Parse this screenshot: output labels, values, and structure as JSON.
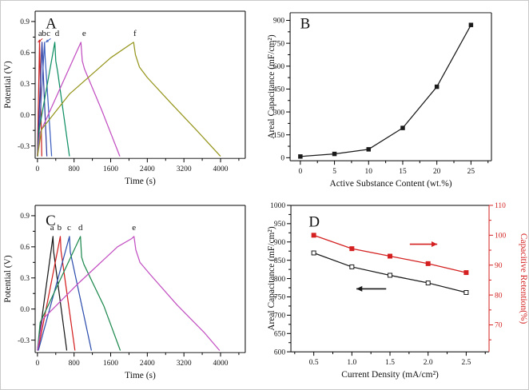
{
  "figure": {
    "background": "#ffffff",
    "border_color": "#c9c9c9",
    "panels": [
      "A",
      "B",
      "C",
      "D"
    ]
  },
  "chart_data": [
    {
      "id": "A",
      "type": "line",
      "panel_letter": "A",
      "xlabel": "Time (s)",
      "ylabel": "Potential (V)",
      "xlim": [
        -50,
        4540
      ],
      "ylim": [
        -0.42,
        1.0
      ],
      "xticks": {
        "v": [
          0,
          800,
          1600,
          2400,
          3200,
          4000
        ],
        "labels": [
          "0",
          "800",
          "1600",
          "2400",
          "3200",
          "4000"
        ]
      },
      "xminor": [
        400,
        1200,
        2000,
        2800,
        3600,
        4400
      ],
      "yticks": {
        "v": [
          0.9,
          0.6,
          0.3,
          0.0,
          -0.3
        ],
        "labels": [
          "0.9",
          "0.6",
          "0.3",
          "0.0",
          "-0.3"
        ]
      },
      "yminor": [
        0.75,
        0.45,
        0.15,
        -0.15
      ],
      "margins": {
        "l": 43,
        "r": 24,
        "t": 13,
        "b": 46
      },
      "series": [
        {
          "name": "a",
          "color": "#cc2222",
          "points": [
            [
              0,
              -0.4
            ],
            [
              45,
              0.7
            ],
            [
              52,
              0.58
            ],
            [
              95,
              -0.4
            ]
          ]
        },
        {
          "name": "b",
          "color": "#2f3b9e",
          "points": [
            [
              0,
              -0.4
            ],
            [
              100,
              0.7
            ],
            [
              110,
              0.57
            ],
            [
              205,
              -0.4
            ]
          ]
        },
        {
          "name": "c",
          "color": "#3c5fc0",
          "points": [
            [
              5,
              -0.4
            ],
            [
              155,
              0.7
            ],
            [
              167,
              0.56
            ],
            [
              310,
              -0.4
            ]
          ]
        },
        {
          "name": "d",
          "color": "#108f63",
          "points": [
            [
              0,
              -0.4
            ],
            [
              35,
              -0.15
            ],
            [
              380,
              0.7
            ],
            [
              400,
              0.52
            ],
            [
              440,
              0.42
            ],
            [
              700,
              -0.4
            ]
          ]
        },
        {
          "name": "e",
          "color": "#c24fc2",
          "points": [
            [
              0,
              -0.4
            ],
            [
              50,
              -0.18
            ],
            [
              950,
              0.7
            ],
            [
              980,
              0.52
            ],
            [
              1030,
              0.44
            ],
            [
              1400,
              0.05
            ],
            [
              1800,
              -0.4
            ]
          ]
        },
        {
          "name": "f",
          "color": "#95951d",
          "points": [
            [
              0,
              -0.4
            ],
            [
              90,
              -0.14
            ],
            [
              700,
              0.2
            ],
            [
              1600,
              0.55
            ],
            [
              2030,
              0.68
            ],
            [
              2100,
              0.7
            ],
            [
              2140,
              0.58
            ],
            [
              2230,
              0.46
            ],
            [
              2400,
              0.36
            ],
            [
              2900,
              0.12
            ],
            [
              3500,
              -0.16
            ],
            [
              4000,
              -0.4
            ]
          ]
        }
      ],
      "annotations": [
        {
          "type": "letter",
          "fx": 0.05,
          "fy": 0.92,
          "text": "A",
          "size": 19
        },
        {
          "type": "text",
          "x": 60,
          "y": 0.76,
          "text": "a",
          "size": 11
        },
        {
          "type": "text",
          "x": 145,
          "y": 0.76,
          "text": "b",
          "size": 11
        },
        {
          "type": "text",
          "x": 240,
          "y": 0.76,
          "text": "c",
          "size": 11
        },
        {
          "type": "text",
          "x": 430,
          "y": 0.76,
          "text": "d",
          "size": 11
        },
        {
          "type": "text",
          "x": 1020,
          "y": 0.76,
          "text": "e",
          "size": 11
        },
        {
          "type": "text",
          "x": 2130,
          "y": 0.76,
          "text": "f",
          "size": 11
        },
        {
          "type": "arrow",
          "x1": 110,
          "y1": 0.735,
          "x2": 10,
          "y2": 0.7,
          "color": "#cc2222",
          "w": 1,
          "head": 4
        },
        {
          "type": "arrow",
          "x1": 290,
          "y1": 0.735,
          "x2": 180,
          "y2": 0.7,
          "color": "#3c5fc0",
          "w": 1,
          "head": 4
        }
      ]
    },
    {
      "id": "B",
      "type": "line",
      "panel_letter": "B",
      "xlabel": "Active Substance Content (wt.%)",
      "ylabel": "Areal Capacitance (mF/cm²)",
      "xlim": [
        -1.5,
        28
      ],
      "ylim": [
        -20,
        950
      ],
      "xticks": {
        "v": [
          0,
          5,
          10,
          15,
          20,
          25
        ],
        "labels": [
          "0",
          "5",
          "10",
          "15",
          "20",
          "25"
        ]
      },
      "xminor": [
        2.5,
        7.5,
        12.5,
        17.5,
        22.5,
        27.5
      ],
      "yticks": {
        "v": [
          0,
          150,
          300,
          450,
          600,
          750,
          900
        ],
        "labels": [
          "0",
          "150",
          "300",
          "450",
          "600",
          "750",
          "900"
        ]
      },
      "yminor": [
        75,
        225,
        375,
        525,
        675,
        825
      ],
      "margins": {
        "l": 32,
        "r": 46,
        "t": 15,
        "b": 43
      },
      "series": [
        {
          "name": "areal-capacitance",
          "color": "#1a1a1a",
          "marker": "filled",
          "ms": 4.5,
          "points": [
            [
              0,
              8
            ],
            [
              5,
              25
            ],
            [
              10,
              55
            ],
            [
              15,
              195
            ],
            [
              20,
              465
            ],
            [
              25,
              870
            ]
          ]
        }
      ],
      "annotations": [
        {
          "type": "letter",
          "fx": 0.05,
          "fy": 0.93,
          "text": "B",
          "size": 19
        }
      ]
    },
    {
      "id": "C",
      "type": "line",
      "panel_letter": "C",
      "xlabel": "Time (s)",
      "ylabel": "Potential (V)",
      "xlim": [
        -50,
        4540
      ],
      "ylim": [
        -0.42,
        1.0
      ],
      "xticks": {
        "v": [
          0,
          800,
          1600,
          2400,
          3200,
          4000
        ],
        "labels": [
          "0",
          "800",
          "1600",
          "2400",
          "3200",
          "4000"
        ]
      },
      "xminor": [
        400,
        1200,
        2000,
        2800,
        3600,
        4400
      ],
      "yticks": {
        "v": [
          0.9,
          0.6,
          0.3,
          0.0,
          -0.3
        ],
        "labels": [
          "0.9",
          "0.6",
          "0.3",
          "0.0",
          "-0.3"
        ]
      },
      "yminor": [
        0.75,
        0.45,
        0.15,
        -0.15
      ],
      "margins": {
        "l": 43,
        "r": 24,
        "t": 13,
        "b": 46
      },
      "series": [
        {
          "name": "a",
          "color": "#1a1a1a",
          "points": [
            [
              0,
              -0.4
            ],
            [
              340,
              0.7
            ],
            [
              352,
              0.56
            ],
            [
              640,
              -0.4
            ]
          ]
        },
        {
          "name": "b",
          "color": "#d42020",
          "points": [
            [
              10,
              -0.4
            ],
            [
              500,
              0.7
            ],
            [
              515,
              0.56
            ],
            [
              820,
              -0.4
            ]
          ]
        },
        {
          "name": "c",
          "color": "#2f4fae",
          "points": [
            [
              20,
              -0.4
            ],
            [
              700,
              0.7
            ],
            [
              716,
              0.55
            ],
            [
              1180,
              -0.4
            ]
          ]
        },
        {
          "name": "d",
          "color": "#1f8a50",
          "points": [
            [
              0,
              -0.4
            ],
            [
              60,
              -0.13
            ],
            [
              940,
              0.7
            ],
            [
              965,
              0.5
            ],
            [
              1015,
              0.43
            ],
            [
              1450,
              0.03
            ],
            [
              1810,
              -0.4
            ]
          ]
        },
        {
          "name": "e",
          "color": "#c24fc2",
          "points": [
            [
              0,
              -0.4
            ],
            [
              110,
              -0.1
            ],
            [
              900,
              0.25
            ],
            [
              1750,
              0.6
            ],
            [
              2060,
              0.68
            ],
            [
              2110,
              0.7
            ],
            [
              2150,
              0.57
            ],
            [
              2240,
              0.45
            ],
            [
              2470,
              0.33
            ],
            [
              3050,
              0.04
            ],
            [
              3650,
              -0.23
            ],
            [
              3980,
              -0.4
            ]
          ]
        }
      ],
      "annotations": [
        {
          "type": "letter",
          "fx": 0.05,
          "fy": 0.9,
          "text": "C",
          "size": 19
        },
        {
          "type": "text",
          "x": 320,
          "y": 0.76,
          "text": "a",
          "size": 11
        },
        {
          "type": "text",
          "x": 480,
          "y": 0.76,
          "text": "b",
          "size": 11
        },
        {
          "type": "text",
          "x": 690,
          "y": 0.76,
          "text": "c",
          "size": 11
        },
        {
          "type": "text",
          "x": 940,
          "y": 0.76,
          "text": "d",
          "size": 11
        },
        {
          "type": "text",
          "x": 2110,
          "y": 0.76,
          "text": "e",
          "size": 11
        }
      ]
    },
    {
      "id": "D",
      "type": "line",
      "panel_letter": "D",
      "xlabel": "Current Density (mA/cm²)",
      "ylabel": "Areal Capacitance (mF/cm²)",
      "ylabel_right": "Capacitive Retention(%)",
      "right_color": "#d42020",
      "xlim": [
        0.2,
        2.8
      ],
      "ylim": [
        600,
        1000
      ],
      "rlim": [
        61,
        110
      ],
      "xticks": {
        "v": [
          0.5,
          1.0,
          1.5,
          2.0,
          2.5
        ],
        "labels": [
          "0.5",
          "1.0",
          "1.5",
          "2.0",
          "2.5"
        ]
      },
      "xminor": [
        0.25,
        0.75,
        1.25,
        1.75,
        2.25,
        2.75
      ],
      "yticks": {
        "v": [
          1000,
          950,
          900,
          850,
          800,
          750,
          700,
          650,
          600
        ],
        "labels": [
          "1000",
          "950",
          "900",
          "850",
          "800",
          "750",
          "700",
          "650",
          "600"
        ]
      },
      "yminor": [
        975,
        925,
        875,
        825,
        775,
        725,
        675,
        625
      ],
      "rticks": {
        "v": [
          110,
          100,
          90,
          80,
          70
        ],
        "labels": [
          "110",
          "100",
          "90",
          "80",
          "70"
        ]
      },
      "rminor": [
        105,
        95,
        85,
        75,
        65
      ],
      "margins": {
        "l": 33,
        "r": 49,
        "t": 13,
        "b": 47
      },
      "series": [
        {
          "name": "areal-capacitance",
          "color": "#1a1a1a",
          "marker": "open",
          "ms": 5,
          "points": [
            [
              0.5,
              870
            ],
            [
              1.0,
              832
            ],
            [
              1.5,
              809
            ],
            [
              2.0,
              788
            ],
            [
              2.5,
              762
            ]
          ]
        },
        {
          "name": "capacitive-retention",
          "color": "#d42020",
          "axis": "right",
          "marker": "filled",
          "ms": 5,
          "points": [
            [
              0.5,
              100
            ],
            [
              1.0,
              95.5
            ],
            [
              1.5,
              93
            ],
            [
              2.0,
              90.5
            ],
            [
              2.5,
              87.5
            ]
          ]
        }
      ],
      "annotations": [
        {
          "type": "letter",
          "fx": 0.09,
          "fy": 0.89,
          "text": "D",
          "size": 19
        },
        {
          "type": "arrow",
          "x1": 1.45,
          "y1": 772,
          "x2": 1.06,
          "y2": 772,
          "color": "#1a1a1a",
          "w": 1.6,
          "head": 8
        },
        {
          "type": "arrow",
          "x1": 1.76,
          "y1": 97,
          "x2": 2.12,
          "y2": 97,
          "axis": "right",
          "color": "#d42020",
          "w": 1.6,
          "head": 8
        }
      ]
    }
  ]
}
